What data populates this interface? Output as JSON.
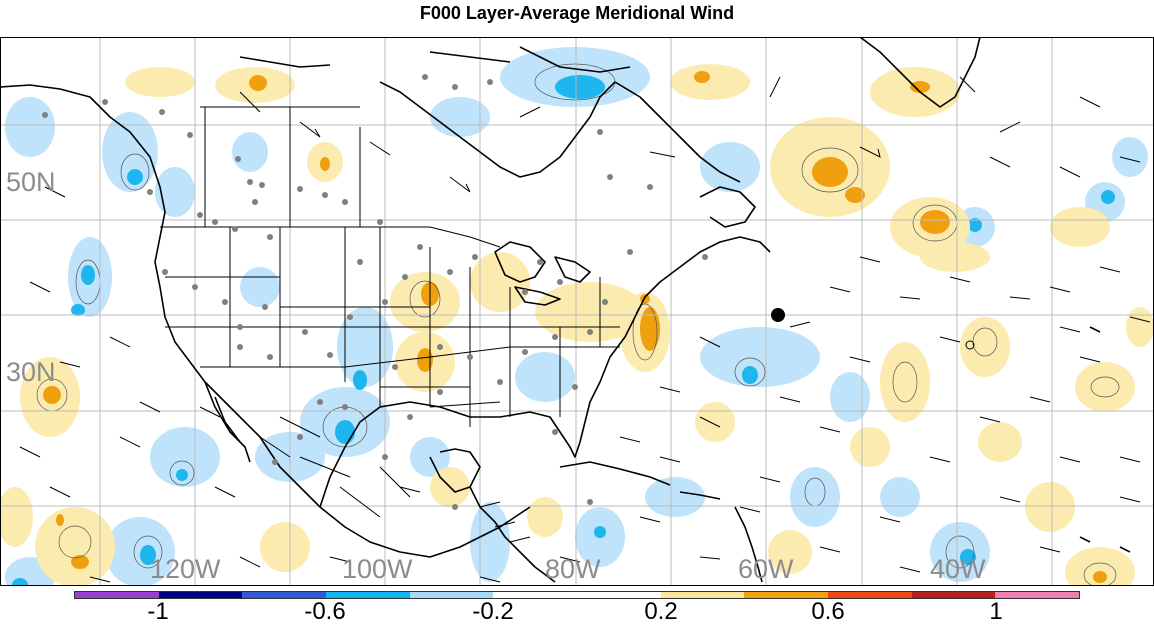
{
  "title": "F000 Layer-Average Meridional Wind",
  "map": {
    "projection": "cylindrical",
    "lat_labels": [
      "50N",
      "30N"
    ],
    "lon_labels": [
      "120W",
      "100W",
      "80W",
      "60W",
      "40W"
    ],
    "overlays": [
      "coastlines",
      "political-boundaries",
      "wind-barbs",
      "station-dots",
      "contour-lines"
    ]
  },
  "colorbar": {
    "segment_colors": [
      "#9a3fd0",
      "#000080",
      "#3159d4",
      "#12b4ef",
      "#a8d8f8",
      "#ffffff",
      "#ffffff",
      "#fbe79b",
      "#f2a112",
      "#ef4a14",
      "#b5221c",
      "#f07fb0"
    ],
    "tick_labels": [
      "-1",
      "-0.6",
      "-0.2",
      "0.2",
      "0.6",
      "1"
    ]
  },
  "colors": {
    "negative_light": "#bfe3fa",
    "negative_strong": "#1fb5ee",
    "positive_light": "#fcebae",
    "positive_strong": "#f0a00e",
    "grid": "#bbbbbb",
    "label_gray": "#8c8c8c"
  }
}
